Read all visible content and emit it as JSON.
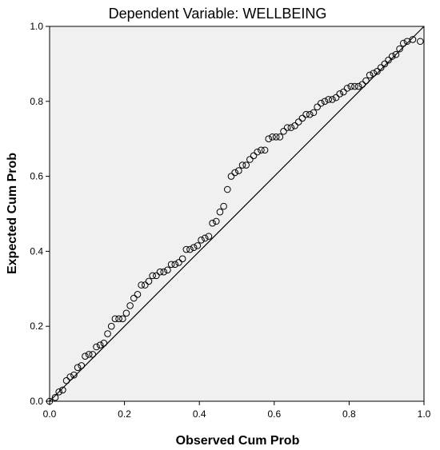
{
  "chart_data": {
    "type": "scatter",
    "title": "Dependent Variable: WELLBEING",
    "xlabel": "Observed Cum Prob",
    "ylabel": "Expected Cum Prob",
    "xlim": [
      0,
      1
    ],
    "ylim": [
      0,
      1
    ],
    "x_ticks": [
      "0.0",
      "0.2",
      "0.4",
      "0.6",
      "0.8",
      "1.0"
    ],
    "y_ticks": [
      "0.0",
      "0.2",
      "0.4",
      "0.6",
      "0.8",
      "1.0"
    ],
    "reference_line": {
      "x": [
        0,
        1
      ],
      "y": [
        0,
        1
      ]
    },
    "plot_background": "#f0f0f0",
    "marker_color": "#000000",
    "grid": false,
    "points": [
      [
        0.0,
        0.0
      ],
      [
        0.015,
        0.01
      ],
      [
        0.025,
        0.025
      ],
      [
        0.035,
        0.03
      ],
      [
        0.045,
        0.055
      ],
      [
        0.055,
        0.065
      ],
      [
        0.065,
        0.07
      ],
      [
        0.075,
        0.09
      ],
      [
        0.085,
        0.095
      ],
      [
        0.095,
        0.12
      ],
      [
        0.105,
        0.125
      ],
      [
        0.115,
        0.125
      ],
      [
        0.125,
        0.145
      ],
      [
        0.135,
        0.15
      ],
      [
        0.145,
        0.155
      ],
      [
        0.155,
        0.18
      ],
      [
        0.165,
        0.2
      ],
      [
        0.175,
        0.22
      ],
      [
        0.185,
        0.22
      ],
      [
        0.195,
        0.22
      ],
      [
        0.205,
        0.235
      ],
      [
        0.215,
        0.255
      ],
      [
        0.225,
        0.275
      ],
      [
        0.235,
        0.285
      ],
      [
        0.245,
        0.31
      ],
      [
        0.255,
        0.31
      ],
      [
        0.265,
        0.32
      ],
      [
        0.275,
        0.335
      ],
      [
        0.285,
        0.335
      ],
      [
        0.295,
        0.345
      ],
      [
        0.305,
        0.345
      ],
      [
        0.315,
        0.35
      ],
      [
        0.325,
        0.365
      ],
      [
        0.335,
        0.365
      ],
      [
        0.345,
        0.37
      ],
      [
        0.355,
        0.38
      ],
      [
        0.365,
        0.405
      ],
      [
        0.375,
        0.405
      ],
      [
        0.385,
        0.41
      ],
      [
        0.395,
        0.415
      ],
      [
        0.405,
        0.43
      ],
      [
        0.415,
        0.435
      ],
      [
        0.425,
        0.44
      ],
      [
        0.435,
        0.475
      ],
      [
        0.445,
        0.48
      ],
      [
        0.455,
        0.505
      ],
      [
        0.465,
        0.52
      ],
      [
        0.475,
        0.565
      ],
      [
        0.485,
        0.6
      ],
      [
        0.495,
        0.61
      ],
      [
        0.505,
        0.615
      ],
      [
        0.515,
        0.63
      ],
      [
        0.525,
        0.63
      ],
      [
        0.535,
        0.645
      ],
      [
        0.545,
        0.655
      ],
      [
        0.555,
        0.665
      ],
      [
        0.565,
        0.67
      ],
      [
        0.575,
        0.67
      ],
      [
        0.585,
        0.7
      ],
      [
        0.595,
        0.705
      ],
      [
        0.605,
        0.705
      ],
      [
        0.615,
        0.705
      ],
      [
        0.625,
        0.72
      ],
      [
        0.635,
        0.73
      ],
      [
        0.645,
        0.73
      ],
      [
        0.655,
        0.735
      ],
      [
        0.665,
        0.745
      ],
      [
        0.675,
        0.755
      ],
      [
        0.685,
        0.765
      ],
      [
        0.695,
        0.765
      ],
      [
        0.705,
        0.77
      ],
      [
        0.715,
        0.785
      ],
      [
        0.725,
        0.795
      ],
      [
        0.735,
        0.8
      ],
      [
        0.745,
        0.805
      ],
      [
        0.755,
        0.805
      ],
      [
        0.765,
        0.81
      ],
      [
        0.775,
        0.82
      ],
      [
        0.785,
        0.825
      ],
      [
        0.795,
        0.835
      ],
      [
        0.805,
        0.84
      ],
      [
        0.815,
        0.84
      ],
      [
        0.825,
        0.84
      ],
      [
        0.835,
        0.845
      ],
      [
        0.845,
        0.855
      ],
      [
        0.855,
        0.87
      ],
      [
        0.865,
        0.875
      ],
      [
        0.875,
        0.88
      ],
      [
        0.885,
        0.89
      ],
      [
        0.895,
        0.9
      ],
      [
        0.905,
        0.91
      ],
      [
        0.915,
        0.92
      ],
      [
        0.925,
        0.925
      ],
      [
        0.935,
        0.94
      ],
      [
        0.945,
        0.955
      ],
      [
        0.955,
        0.96
      ],
      [
        0.97,
        0.965
      ],
      [
        0.99,
        0.96
      ]
    ]
  }
}
